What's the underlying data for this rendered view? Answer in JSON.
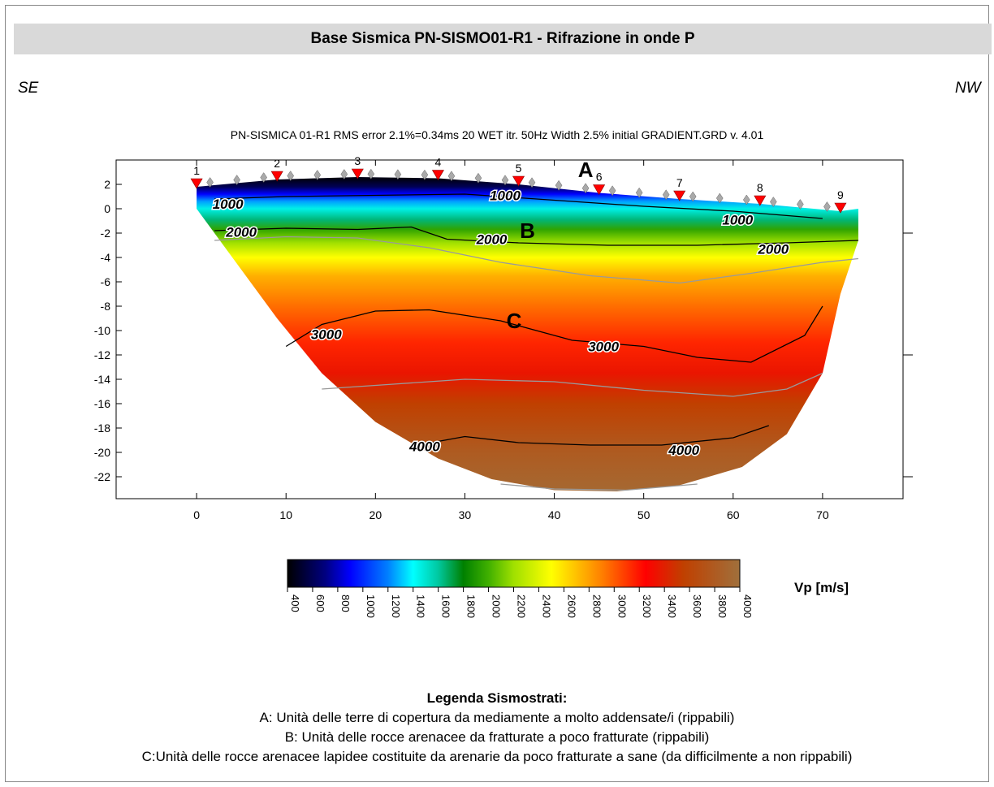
{
  "header": {
    "title": "Base Sismica PN-SISMO01-R1 - Rifrazione in onde P",
    "left_direction": "SE",
    "right_direction": "NW",
    "subtitle": "PN-SISMICA 01-R1 RMS error 2.1%=0.34ms 20 WET itr. 50Hz Width 2.5% initial GRADIENT.GRD v. 4.01"
  },
  "chart_data": {
    "type": "heatmap",
    "x_ticks": [
      "0",
      "10",
      "20",
      "30",
      "40",
      "50",
      "60",
      "70"
    ],
    "y_ticks": [
      "2",
      "0",
      "-2",
      "-4",
      "-6",
      "-8",
      "-10",
      "-12",
      "-14",
      "-16",
      "-18",
      "-20",
      "-22"
    ],
    "xlim": [
      -9,
      79
    ],
    "ylim": [
      -23.8,
      4
    ],
    "surface": [
      [
        0,
        1.8
      ],
      [
        9,
        2.4
      ],
      [
        18,
        2.6
      ],
      [
        27,
        2.5
      ],
      [
        36,
        2.0
      ],
      [
        45,
        1.3
      ],
      [
        54,
        0.8
      ],
      [
        63,
        0.4
      ],
      [
        72,
        -0.2
      ]
    ],
    "bottom_boundary": [
      [
        0,
        0
      ],
      [
        4,
        -4
      ],
      [
        9,
        -9
      ],
      [
        14,
        -13.5
      ],
      [
        20,
        -17.5
      ],
      [
        27,
        -20.5
      ],
      [
        33,
        -22.2
      ],
      [
        40,
        -23.1
      ],
      [
        47,
        -23.2
      ],
      [
        54,
        -22.7
      ],
      [
        61,
        -21.2
      ],
      [
        66,
        -18.5
      ],
      [
        70,
        -13.5
      ],
      [
        72,
        -7
      ],
      [
        74,
        -2.6
      ]
    ],
    "geophones": [
      {
        "label": "1",
        "x": 0,
        "y": 1.8
      },
      {
        "label": "2",
        "x": 9,
        "y": 2.4
      },
      {
        "label": "3",
        "x": 18,
        "y": 2.6
      },
      {
        "label": "4",
        "x": 27,
        "y": 2.5
      },
      {
        "label": "5",
        "x": 36,
        "y": 2.0
      },
      {
        "label": "6",
        "x": 45,
        "y": 1.3
      },
      {
        "label": "7",
        "x": 54,
        "y": 0.8
      },
      {
        "label": "8",
        "x": 63,
        "y": 0.4
      },
      {
        "label": "9",
        "x": 72,
        "y": -0.2
      }
    ],
    "contours": [
      {
        "label": "1000",
        "points": [
          [
            2,
            0.8
          ],
          [
            10,
            1.0
          ],
          [
            20,
            1.1
          ],
          [
            30,
            1.2
          ],
          [
            40,
            0.7
          ],
          [
            50,
            0.2
          ],
          [
            60,
            -0.2
          ],
          [
            70,
            -0.8
          ]
        ]
      },
      {
        "label": "2000",
        "points": [
          [
            2,
            -1.8
          ],
          [
            10,
            -1.6
          ],
          [
            18,
            -1.7
          ],
          [
            24,
            -1.5
          ],
          [
            28,
            -2.5
          ],
          [
            36,
            -2.8
          ],
          [
            46,
            -3.0
          ],
          [
            56,
            -3.0
          ],
          [
            66,
            -2.8
          ],
          [
            74,
            -2.6
          ]
        ]
      },
      {
        "label": "3000",
        "points": [
          [
            10,
            -11.3
          ],
          [
            14,
            -9.5
          ],
          [
            20,
            -8.4
          ],
          [
            26,
            -8.3
          ],
          [
            34,
            -9.2
          ],
          [
            42,
            -10.8
          ],
          [
            50,
            -11.3
          ],
          [
            56,
            -12.2
          ],
          [
            62,
            -12.6
          ],
          [
            68,
            -10.4
          ],
          [
            70,
            -8
          ]
        ]
      },
      {
        "label": "4000",
        "points": [
          [
            24,
            -19.5
          ],
          [
            30,
            -18.7
          ],
          [
            36,
            -19.2
          ],
          [
            44,
            -19.4
          ],
          [
            52,
            -19.4
          ],
          [
            60,
            -18.8
          ],
          [
            64,
            -17.8
          ]
        ]
      }
    ],
    "contour_labels": [
      {
        "text": "1000",
        "x": 3.5,
        "y": 0.4
      },
      {
        "text": "1000",
        "x": 34.5,
        "y": 1.1
      },
      {
        "text": "1000",
        "x": 60.5,
        "y": -0.9
      },
      {
        "text": "2000",
        "x": 5,
        "y": -1.9
      },
      {
        "text": "2000",
        "x": 33,
        "y": -2.5
      },
      {
        "text": "2000",
        "x": 64.5,
        "y": -3.3
      },
      {
        "text": "3000",
        "x": 14.5,
        "y": -10.3
      },
      {
        "text": "3000",
        "x": 45.5,
        "y": -11.3
      },
      {
        "text": "4000",
        "x": 25.5,
        "y": -19.5
      },
      {
        "text": "4000",
        "x": 54.5,
        "y": -19.8
      }
    ],
    "units": [
      {
        "text": "A",
        "x": 43.5,
        "y": 3.2
      },
      {
        "text": "B",
        "x": 37,
        "y": -1.8
      },
      {
        "text": "C",
        "x": 35.5,
        "y": -9.2
      }
    ],
    "colorbar": {
      "label": "Vp [m/s]",
      "min": 400,
      "max": 4000,
      "ticks": [
        "400",
        "600",
        "800",
        "1000",
        "1200",
        "1400",
        "1600",
        "1800",
        "2000",
        "2200",
        "2400",
        "2600",
        "2800",
        "3000",
        "3200",
        "3400",
        "3600",
        "3800",
        "4000"
      ],
      "stops": [
        {
          "v": 400,
          "color": "#000000"
        },
        {
          "v": 700,
          "color": "#000080"
        },
        {
          "v": 900,
          "color": "#0000ff"
        },
        {
          "v": 1200,
          "color": "#0080ff"
        },
        {
          "v": 1400,
          "color": "#00ffff"
        },
        {
          "v": 1600,
          "color": "#00c8a0"
        },
        {
          "v": 1800,
          "color": "#008000"
        },
        {
          "v": 2000,
          "color": "#40b000"
        },
        {
          "v": 2200,
          "color": "#a0e000"
        },
        {
          "v": 2500,
          "color": "#ffff00"
        },
        {
          "v": 2700,
          "color": "#ffc000"
        },
        {
          "v": 2900,
          "color": "#ff8000"
        },
        {
          "v": 3250,
          "color": "#ff0000"
        },
        {
          "v": 3550,
          "color": "#c04000"
        },
        {
          "v": 4000,
          "color": "#a0703c"
        }
      ]
    }
  },
  "legend": {
    "title": "Legenda Sismostrati:",
    "items": [
      "A: Unità delle terre di copertura da mediamente a molto addensate/i (rippabili)",
      "B: Unità delle rocce arenacee da fratturate a poco fratturate (rippabili)",
      "C:Unità delle rocce arenacee lapidee costituite da arenarie da poco fratturate a sane (da difficilmente a non rippabili)"
    ]
  }
}
